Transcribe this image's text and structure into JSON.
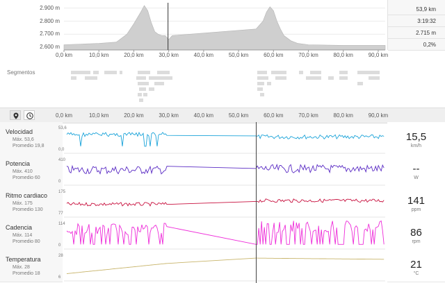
{
  "elevation": {
    "y_ticks": [
      "2.900 m",
      "2.800 m",
      "2.700 m",
      "2.600 m"
    ],
    "x_ticks": [
      "0,0 km",
      "10,0 km",
      "20,0 km",
      "30,0 km",
      "40,0 km",
      "50,0 km",
      "60,0 km",
      "70,0 km",
      "80,0 km",
      "90,0 km"
    ],
    "summary": [
      "53,9 km",
      "3:19:32",
      "2.715 m",
      "0,2%"
    ]
  },
  "segments": {
    "label": "Segmentos"
  },
  "toolbar": {
    "pin_icon": "map-pin-icon",
    "clock_icon": "clock-icon"
  },
  "metrics": [
    {
      "name": "Velocidad",
      "max": "Máx. 53,6",
      "avg": "Promedio 19,8",
      "ymax": "53,6",
      "ymin": "0,0",
      "value": "15,5",
      "unit": "km/h",
      "color": "#1aa3d9"
    },
    {
      "name": "Potencia",
      "max": "Máx. 410",
      "avg": "Promedio 60",
      "ymax": "410",
      "ymin": "0",
      "value": "--",
      "unit": "W",
      "color": "#5a2bc4"
    },
    {
      "name": "Ritmo cardiaco",
      "max": "Máx. 175",
      "avg": "Promedio 130",
      "ymax": "175",
      "ymin": "77",
      "value": "141",
      "unit": "ppm",
      "color": "#c8103e"
    },
    {
      "name": "Cadencia",
      "max": "Máx. 114",
      "avg": "Promedio 80",
      "ymax": "114",
      "ymin": "0",
      "value": "86",
      "unit": "rpm",
      "color": "#ee2bd9"
    },
    {
      "name": "Temperatura",
      "max": "Máx. 28",
      "avg": "Promedio 18",
      "ymax": "28",
      "ymin": "6",
      "value": "21",
      "unit": "°C",
      "color": "#c8b46a"
    }
  ],
  "chart_data": {
    "type": "area",
    "x_unit": "km",
    "elevation_profile": {
      "x": [
        0,
        5,
        10,
        15,
        18,
        20,
        22,
        23,
        24,
        25,
        26,
        27,
        28,
        29,
        30,
        31,
        55,
        57,
        58,
        59,
        60,
        61,
        62,
        63,
        65,
        67,
        70,
        80,
        90,
        92
      ],
      "y": [
        2620,
        2625,
        2630,
        2640,
        2700,
        2780,
        2870,
        2920,
        2880,
        2790,
        2720,
        2700,
        2690,
        2690,
        2660,
        2690,
        2740,
        2800,
        2870,
        2910,
        2880,
        2800,
        2740,
        2690,
        2650,
        2630,
        2620,
        2615,
        2615,
        2615
      ]
    },
    "xlim": [
      0,
      92
    ],
    "ylim": [
      2580,
      2930
    ],
    "cursor_km": 29.8,
    "cursor_bottom_km": 55
  }
}
